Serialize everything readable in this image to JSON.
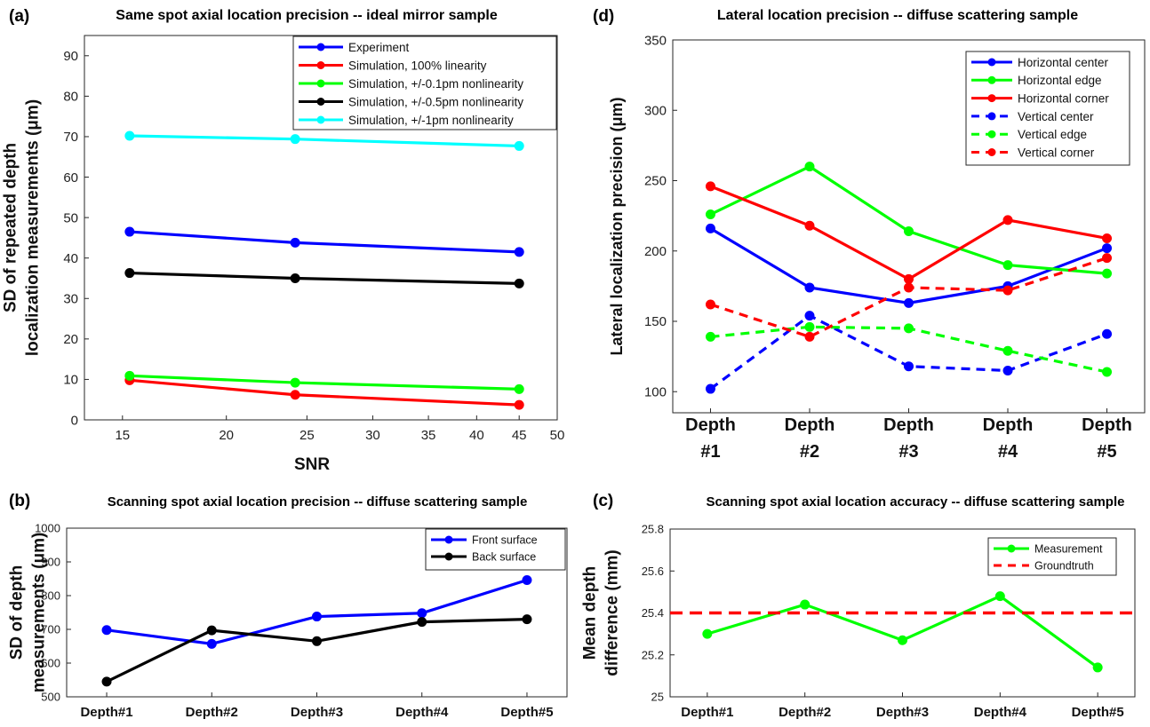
{
  "panels": {
    "a": {
      "letter": "(a)",
      "title": "Same spot axial location precision -- ideal mirror sample"
    },
    "b": {
      "letter": "(b)",
      "title": "Scanning spot axial location precision -- diffuse scattering sample"
    },
    "c": {
      "letter": "(c)",
      "title": "Scanning spot axial location accuracy -- diffuse scattering sample"
    },
    "d": {
      "letter": "(d)",
      "title": "Lateral location precision -- diffuse scattering sample"
    }
  },
  "chart_data": [
    {
      "id": "a",
      "type": "line",
      "title": "Same spot axial location precision -- ideal mirror sample",
      "xlabel": "SNR",
      "ylabel": [
        "SD of repeated depth",
        "localization measurements (μm)"
      ],
      "xscale": "log",
      "xlim": [
        13.5,
        50
      ],
      "ylim": [
        0,
        95
      ],
      "xticks": [
        15,
        20,
        25,
        30,
        35,
        40,
        45,
        50
      ],
      "yticks": [
        0,
        10,
        20,
        30,
        40,
        50,
        60,
        70,
        80,
        90
      ],
      "grid": false,
      "legend_position": "top-right",
      "x": [
        15.3,
        24.2,
        45
      ],
      "series": [
        {
          "name": "Experiment",
          "color": "#0000ff",
          "dash": "solid",
          "values": [
            46.5,
            43.8,
            41.5
          ]
        },
        {
          "name": "Simulation, 100% linearity",
          "color": "#ff0000",
          "dash": "solid",
          "values": [
            9.8,
            6.2,
            3.7
          ]
        },
        {
          "name": "Simulation, +/-0.1pm nonlinearity",
          "color": "#00ff00",
          "dash": "solid",
          "values": [
            10.9,
            9.2,
            7.6
          ]
        },
        {
          "name": "Simulation, +/-0.5pm nonlinearity",
          "color": "#000000",
          "dash": "solid",
          "values": [
            36.3,
            35.0,
            33.7
          ]
        },
        {
          "name": "Simulation, +/-1pm nonlinearity",
          "color": "#00ffff",
          "dash": "solid",
          "values": [
            70.2,
            69.4,
            67.7
          ]
        }
      ]
    },
    {
      "id": "b",
      "type": "line",
      "title": "Scanning spot axial location precision -- diffuse scattering sample",
      "xlabel": "",
      "ylabel": [
        "SD of depth",
        "measurements (μm)"
      ],
      "categories": [
        "Depth#1",
        "Depth#2",
        "Depth#3",
        "Depth#4",
        "Depth#5"
      ],
      "ylim": [
        500,
        1000
      ],
      "yticks": [
        500,
        600,
        700,
        800,
        900,
        1000
      ],
      "grid": false,
      "legend_position": "top-right",
      "series": [
        {
          "name": "Front surface",
          "color": "#0000ff",
          "dash": "solid",
          "values": [
            698,
            657,
            738,
            748,
            846
          ]
        },
        {
          "name": "Back surface",
          "color": "#000000",
          "dash": "solid",
          "values": [
            545,
            697,
            665,
            722,
            730
          ]
        }
      ]
    },
    {
      "id": "c",
      "type": "line",
      "title": "Scanning spot axial location accuracy -- diffuse scattering sample",
      "xlabel": "",
      "ylabel": [
        "Mean depth",
        "difference (mm)"
      ],
      "categories": [
        "Depth#1",
        "Depth#2",
        "Depth#3",
        "Depth#4",
        "Depth#5"
      ],
      "ylim": [
        25,
        25.8
      ],
      "yticks": [
        "25",
        "25.2",
        "25.4",
        "25.6",
        "25.8"
      ],
      "grid": false,
      "legend_position": "top-right",
      "series": [
        {
          "name": "Measurement",
          "color": "#00ff00",
          "dash": "solid",
          "values": [
            25.3,
            25.44,
            25.27,
            25.48,
            25.14
          ]
        },
        {
          "name": "Groundtruth",
          "color": "#ff0000",
          "dash": "dashed",
          "markers": false,
          "values": [
            25.4,
            25.4,
            25.4,
            25.4,
            25.4
          ]
        }
      ]
    },
    {
      "id": "d",
      "type": "line",
      "title": "Lateral location precision -- diffuse scattering sample",
      "xlabel": "",
      "ylabel": [
        "Lateral localization precision (μm)"
      ],
      "categories": [
        [
          "Depth",
          "#1"
        ],
        [
          "Depth",
          "#2"
        ],
        [
          "Depth",
          "#3"
        ],
        [
          "Depth",
          "#4"
        ],
        [
          "Depth",
          "#5"
        ]
      ],
      "ylim": [
        85,
        350
      ],
      "yticks": [
        100,
        150,
        200,
        250,
        300,
        350
      ],
      "grid": false,
      "legend_position": "top-right",
      "series": [
        {
          "name": "Horizontal center",
          "color": "#0000ff",
          "dash": "solid",
          "values": [
            216,
            174,
            163,
            175,
            202
          ]
        },
        {
          "name": "Horizontal edge",
          "color": "#00ff00",
          "dash": "solid",
          "values": [
            226,
            260,
            214,
            190,
            184
          ]
        },
        {
          "name": "Horizontal corner",
          "color": "#ff0000",
          "dash": "solid",
          "values": [
            246,
            218,
            180,
            222,
            209
          ]
        },
        {
          "name": "Vertical center",
          "color": "#0000ff",
          "dash": "dashed",
          "values": [
            102,
            154,
            118,
            115,
            141
          ]
        },
        {
          "name": "Vertical edge",
          "color": "#00ff00",
          "dash": "dashed",
          "values": [
            139,
            146,
            145,
            129,
            114
          ]
        },
        {
          "name": "Vertical corner",
          "color": "#ff0000",
          "dash": "dashed",
          "values": [
            162,
            139,
            174,
            172,
            195
          ]
        }
      ]
    }
  ]
}
